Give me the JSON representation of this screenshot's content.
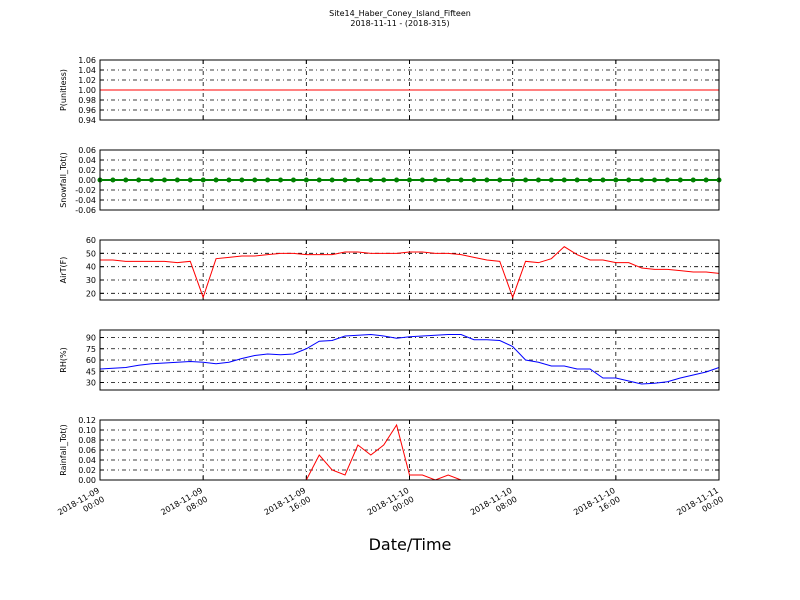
{
  "title": "Site14_Haber_Coney_Island_Fifteen",
  "subtitle": "2018-11-11 - (2018-315)",
  "xlabel": "Date/Time",
  "chart_data": [
    {
      "type": "line",
      "ylabel": "P(unitless)",
      "x": [
        "2018-11-09 00:00",
        "2018-11-09 01:00",
        "2018-11-09 02:00",
        "2018-11-09 03:00",
        "2018-11-09 04:00",
        "2018-11-09 05:00",
        "2018-11-09 06:00",
        "2018-11-09 07:00",
        "2018-11-09 08:00",
        "2018-11-09 09:00",
        "2018-11-09 10:00",
        "2018-11-09 11:00",
        "2018-11-09 12:00",
        "2018-11-09 13:00",
        "2018-11-09 14:00",
        "2018-11-09 15:00",
        "2018-11-09 16:00",
        "2018-11-09 17:00",
        "2018-11-09 18:00",
        "2018-11-09 19:00",
        "2018-11-09 20:00",
        "2018-11-09 21:00",
        "2018-11-09 22:00",
        "2018-11-09 23:00",
        "2018-11-10 00:00",
        "2018-11-10 01:00",
        "2018-11-10 02:00",
        "2018-11-10 03:00",
        "2018-11-10 04:00",
        "2018-11-10 05:00",
        "2018-11-10 06:00",
        "2018-11-10 07:00",
        "2018-11-10 08:00",
        "2018-11-10 09:00",
        "2018-11-10 10:00",
        "2018-11-10 11:00",
        "2018-11-10 12:00",
        "2018-11-10 13:00",
        "2018-11-10 14:00",
        "2018-11-10 15:00",
        "2018-11-10 16:00",
        "2018-11-10 17:00",
        "2018-11-10 18:00",
        "2018-11-10 19:00",
        "2018-11-10 20:00",
        "2018-11-10 21:00",
        "2018-11-10 22:00",
        "2018-11-10 23:00",
        "2018-11-11 00:00"
      ],
      "xlim": [
        "2018-11-09 00:00",
        "2018-11-11 00:00"
      ],
      "xticks": [
        "2018-11-09 00:00",
        "2018-11-09 08:00",
        "2018-11-09 16:00",
        "2018-11-10 00:00",
        "2018-11-10 08:00",
        "2018-11-10 16:00",
        "2018-11-11 00:00"
      ],
      "ylim": [
        0.94,
        1.06
      ],
      "yticks": [
        0.94,
        0.96,
        0.98,
        {
          "value": 1,
          "label": "1.00"
        },
        1.02,
        1.04,
        1.06
      ],
      "grid": true,
      "series": [
        {
          "color": "#ff0000",
          "values": [
            1,
            1,
            1,
            1,
            1,
            1,
            1,
            1,
            1,
            1,
            1,
            1,
            1,
            1,
            1,
            1,
            1,
            1,
            1,
            1,
            1,
            1,
            1,
            1,
            1,
            1,
            1,
            1,
            1,
            1,
            1,
            1,
            1,
            1,
            1,
            1,
            1,
            1,
            1,
            1,
            1,
            1,
            1,
            1,
            1,
            1,
            1,
            1,
            1
          ]
        }
      ]
    },
    {
      "type": "line",
      "ylabel": "Snowfall_Tot()",
      "x": [
        "2018-11-09 00:00",
        "2018-11-09 01:00",
        "2018-11-09 02:00",
        "2018-11-09 03:00",
        "2018-11-09 04:00",
        "2018-11-09 05:00",
        "2018-11-09 06:00",
        "2018-11-09 07:00",
        "2018-11-09 08:00",
        "2018-11-09 09:00",
        "2018-11-09 10:00",
        "2018-11-09 11:00",
        "2018-11-09 12:00",
        "2018-11-09 13:00",
        "2018-11-09 14:00",
        "2018-11-09 15:00",
        "2018-11-09 16:00",
        "2018-11-09 17:00",
        "2018-11-09 18:00",
        "2018-11-09 19:00",
        "2018-11-09 20:00",
        "2018-11-09 21:00",
        "2018-11-09 22:00",
        "2018-11-09 23:00",
        "2018-11-10 00:00",
        "2018-11-10 01:00",
        "2018-11-10 02:00",
        "2018-11-10 03:00",
        "2018-11-10 04:00",
        "2018-11-10 05:00",
        "2018-11-10 06:00",
        "2018-11-10 07:00",
        "2018-11-10 08:00",
        "2018-11-10 09:00",
        "2018-11-10 10:00",
        "2018-11-10 11:00",
        "2018-11-10 12:00",
        "2018-11-10 13:00",
        "2018-11-10 14:00",
        "2018-11-10 15:00",
        "2018-11-10 16:00",
        "2018-11-10 17:00",
        "2018-11-10 18:00",
        "2018-11-10 19:00",
        "2018-11-10 20:00",
        "2018-11-10 21:00",
        "2018-11-10 22:00",
        "2018-11-10 23:00",
        "2018-11-11 00:00"
      ],
      "xlim": [
        "2018-11-09 00:00",
        "2018-11-11 00:00"
      ],
      "xticks": [
        "2018-11-09 00:00",
        "2018-11-09 08:00",
        "2018-11-09 16:00",
        "2018-11-10 00:00",
        "2018-11-10 08:00",
        "2018-11-10 16:00",
        "2018-11-11 00:00"
      ],
      "ylim": [
        -0.06,
        0.06
      ],
      "yticks": [
        -0.06,
        -0.04,
        -0.02,
        {
          "value": 0,
          "label": "0.00"
        },
        0.02,
        0.04,
        0.06
      ],
      "grid": true,
      "series": [
        {
          "color": "#008000",
          "markers": true,
          "values": [
            0,
            0,
            0,
            0,
            0,
            0,
            0,
            0,
            0,
            0,
            0,
            0,
            0,
            0,
            0,
            0,
            0,
            0,
            0,
            0,
            0,
            0,
            0,
            0,
            0,
            0,
            0,
            0,
            0,
            0,
            0,
            0,
            0,
            0,
            0,
            0,
            0,
            0,
            0,
            0,
            0,
            0,
            0,
            0,
            0,
            0,
            0,
            0,
            0
          ]
        }
      ]
    },
    {
      "type": "line",
      "ylabel": "AirT(F)",
      "x": [
        "2018-11-09 00:00",
        "2018-11-09 01:00",
        "2018-11-09 02:00",
        "2018-11-09 03:00",
        "2018-11-09 04:00",
        "2018-11-09 05:00",
        "2018-11-09 06:00",
        "2018-11-09 07:00",
        "2018-11-09 08:00",
        "2018-11-09 09:00",
        "2018-11-09 10:00",
        "2018-11-09 11:00",
        "2018-11-09 12:00",
        "2018-11-09 13:00",
        "2018-11-09 14:00",
        "2018-11-09 15:00",
        "2018-11-09 16:00",
        "2018-11-09 17:00",
        "2018-11-09 18:00",
        "2018-11-09 19:00",
        "2018-11-09 20:00",
        "2018-11-09 21:00",
        "2018-11-09 22:00",
        "2018-11-09 23:00",
        "2018-11-10 00:00",
        "2018-11-10 01:00",
        "2018-11-10 02:00",
        "2018-11-10 03:00",
        "2018-11-10 04:00",
        "2018-11-10 05:00",
        "2018-11-10 06:00",
        "2018-11-10 07:00",
        "2018-11-10 08:00",
        "2018-11-10 09:00",
        "2018-11-10 10:00",
        "2018-11-10 11:00",
        "2018-11-10 12:00",
        "2018-11-10 13:00",
        "2018-11-10 14:00",
        "2018-11-10 15:00",
        "2018-11-10 16:00",
        "2018-11-10 17:00",
        "2018-11-10 18:00",
        "2018-11-10 19:00",
        "2018-11-10 20:00",
        "2018-11-10 21:00",
        "2018-11-10 22:00",
        "2018-11-10 23:00",
        "2018-11-11 00:00"
      ],
      "xlim": [
        "2018-11-09 00:00",
        "2018-11-11 00:00"
      ],
      "xticks": [
        "2018-11-09 00:00",
        "2018-11-09 08:00",
        "2018-11-09 16:00",
        "2018-11-10 00:00",
        "2018-11-10 08:00",
        "2018-11-10 16:00",
        "2018-11-11 00:00"
      ],
      "ylim": [
        15,
        60
      ],
      "yticks": [
        20,
        30,
        40,
        50,
        60
      ],
      "grid": true,
      "series": [
        {
          "color": "#ff0000",
          "values": [
            45,
            45,
            44,
            44,
            44,
            44,
            43,
            44,
            17,
            46,
            47,
            48,
            48,
            49,
            50,
            50,
            49,
            49,
            49,
            51,
            51,
            50,
            50,
            50,
            51,
            51,
            50,
            50,
            49,
            47,
            45,
            44,
            17,
            44,
            43,
            46,
            55,
            49,
            45,
            45,
            43,
            43,
            39,
            38,
            38,
            37,
            36,
            36,
            35
          ]
        }
      ]
    },
    {
      "type": "line",
      "ylabel": "RH(%)",
      "x": [
        "2018-11-09 00:00",
        "2018-11-09 01:00",
        "2018-11-09 02:00",
        "2018-11-09 03:00",
        "2018-11-09 04:00",
        "2018-11-09 05:00",
        "2018-11-09 06:00",
        "2018-11-09 07:00",
        "2018-11-09 08:00",
        "2018-11-09 09:00",
        "2018-11-09 10:00",
        "2018-11-09 11:00",
        "2018-11-09 12:00",
        "2018-11-09 13:00",
        "2018-11-09 14:00",
        "2018-11-09 15:00",
        "2018-11-09 16:00",
        "2018-11-09 17:00",
        "2018-11-09 18:00",
        "2018-11-09 19:00",
        "2018-11-09 20:00",
        "2018-11-09 21:00",
        "2018-11-09 22:00",
        "2018-11-09 23:00",
        "2018-11-10 00:00",
        "2018-11-10 01:00",
        "2018-11-10 02:00",
        "2018-11-10 03:00",
        "2018-11-10 04:00",
        "2018-11-10 05:00",
        "2018-11-10 06:00",
        "2018-11-10 07:00",
        "2018-11-10 08:00",
        "2018-11-10 09:00",
        "2018-11-10 10:00",
        "2018-11-10 11:00",
        "2018-11-10 12:00",
        "2018-11-10 13:00",
        "2018-11-10 14:00",
        "2018-11-10 15:00",
        "2018-11-10 16:00",
        "2018-11-10 17:00",
        "2018-11-10 18:00",
        "2018-11-10 19:00",
        "2018-11-10 20:00",
        "2018-11-10 21:00",
        "2018-11-10 22:00",
        "2018-11-10 23:00",
        "2018-11-11 00:00"
      ],
      "xlim": [
        "2018-11-09 00:00",
        "2018-11-11 00:00"
      ],
      "xticks": [
        "2018-11-09 00:00",
        "2018-11-09 08:00",
        "2018-11-09 16:00",
        "2018-11-10 00:00",
        "2018-11-10 08:00",
        "2018-11-10 16:00",
        "2018-11-11 00:00"
      ],
      "ylim": [
        20,
        100
      ],
      "yticks": [
        30,
        45,
        60,
        75,
        90
      ],
      "grid": true,
      "series": [
        {
          "color": "#0000ff",
          "values": [
            48,
            49,
            50,
            53,
            55,
            56,
            57,
            58,
            57,
            55,
            57,
            62,
            66,
            68,
            67,
            68,
            75,
            85,
            86,
            92,
            93,
            94,
            92,
            89,
            91,
            92,
            93,
            94,
            94,
            87,
            87,
            86,
            78,
            60,
            57,
            52,
            52,
            48,
            48,
            36,
            36,
            32,
            28,
            29,
            31,
            36,
            40,
            44,
            50
          ]
        }
      ]
    },
    {
      "type": "line",
      "ylabel": "Rainfall_Tot()",
      "x": [
        "2018-11-09 00:00",
        "2018-11-09 01:00",
        "2018-11-09 02:00",
        "2018-11-09 03:00",
        "2018-11-09 04:00",
        "2018-11-09 05:00",
        "2018-11-09 06:00",
        "2018-11-09 07:00",
        "2018-11-09 08:00",
        "2018-11-09 09:00",
        "2018-11-09 10:00",
        "2018-11-09 11:00",
        "2018-11-09 12:00",
        "2018-11-09 13:00",
        "2018-11-09 14:00",
        "2018-11-09 15:00",
        "2018-11-09 16:00",
        "2018-11-09 17:00",
        "2018-11-09 18:00",
        "2018-11-09 19:00",
        "2018-11-09 20:00",
        "2018-11-09 21:00",
        "2018-11-09 22:00",
        "2018-11-09 23:00",
        "2018-11-10 00:00",
        "2018-11-10 01:00",
        "2018-11-10 02:00",
        "2018-11-10 03:00",
        "2018-11-10 04:00",
        "2018-11-10 05:00",
        "2018-11-10 06:00",
        "2018-11-10 07:00",
        "2018-11-10 08:00",
        "2018-11-10 09:00",
        "2018-11-10 10:00",
        "2018-11-10 11:00",
        "2018-11-10 12:00",
        "2018-11-10 13:00",
        "2018-11-10 14:00",
        "2018-11-10 15:00",
        "2018-11-10 16:00",
        "2018-11-10 17:00",
        "2018-11-10 18:00",
        "2018-11-10 19:00",
        "2018-11-10 20:00",
        "2018-11-10 21:00",
        "2018-11-10 22:00",
        "2018-11-10 23:00",
        "2018-11-11 00:00"
      ],
      "xlim": [
        "2018-11-09 00:00",
        "2018-11-11 00:00"
      ],
      "xticks": [
        "2018-11-09 00:00",
        "2018-11-09 08:00",
        "2018-11-09 16:00",
        "2018-11-10 00:00",
        "2018-11-10 08:00",
        "2018-11-10 16:00",
        "2018-11-11 00:00"
      ],
      "ylim": [
        0,
        0.12
      ],
      "yticks": [
        {
          "value": 0,
          "label": "0.00"
        },
        0.02,
        0.04,
        0.06,
        0.08,
        {
          "value": 0.1,
          "label": "0.10"
        },
        0.12
      ],
      "grid": true,
      "series": [
        {
          "color": "#ff0000",
          "values": [
            0,
            0,
            0,
            0,
            0,
            0,
            0,
            0,
            0,
            0,
            0,
            0,
            0,
            0,
            0,
            0,
            0,
            0.05,
            0.02,
            0.01,
            0.07,
            0.05,
            0.07,
            0.11,
            0.01,
            0.01,
            0,
            0.01,
            0,
            0,
            0,
            0,
            0,
            0,
            0,
            0,
            0,
            0,
            0,
            0,
            0,
            0,
            0,
            0,
            0,
            0,
            0,
            0,
            0
          ]
        }
      ]
    }
  ]
}
